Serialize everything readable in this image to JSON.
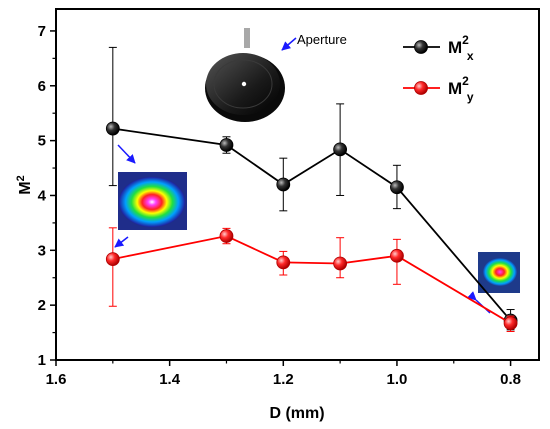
{
  "chart_data": {
    "type": "line",
    "xlabel": "D (mm)",
    "ylabel": "M",
    "ylabel_sup": "2",
    "xlim": [
      1.6,
      0.75
    ],
    "ylim": [
      1,
      7.4
    ],
    "x_ticks": [
      "1.6",
      "1.4",
      "1.2",
      "1.0",
      "0.8"
    ],
    "x_tick_values": [
      1.6,
      1.4,
      1.2,
      1.0,
      0.8
    ],
    "y_ticks": [
      "1",
      "2",
      "3",
      "4",
      "5",
      "6",
      "7"
    ],
    "y_tick_values": [
      1,
      2,
      3,
      4,
      5,
      6,
      7
    ],
    "x": [
      1.5,
      1.3,
      1.2,
      1.1,
      1.0,
      0.8
    ],
    "legend_position": "top-right",
    "grid": false,
    "series": [
      {
        "name": "M",
        "name_sup": "2",
        "name_sub": "x",
        "color": "#000000",
        "marker_color": "#222222",
        "values": [
          5.22,
          4.92,
          4.2,
          4.84,
          4.15,
          1.72
        ],
        "err_low": [
          4.18,
          4.77,
          3.72,
          4.0,
          3.76,
          1.55
        ],
        "err_high": [
          6.7,
          5.07,
          4.68,
          5.67,
          4.55,
          1.92
        ]
      },
      {
        "name": "M",
        "name_sup": "2",
        "name_sub": "y",
        "color": "#ff0000",
        "marker_color": "#ff2020",
        "values": [
          2.84,
          3.26,
          2.78,
          2.76,
          2.9,
          1.67
        ],
        "err_low": [
          1.98,
          3.12,
          2.55,
          2.5,
          2.38,
          1.52
        ],
        "err_high": [
          3.41,
          3.4,
          2.98,
          3.23,
          3.2,
          1.8
        ]
      }
    ],
    "annotations": [
      {
        "text": "Aperture"
      }
    ]
  }
}
